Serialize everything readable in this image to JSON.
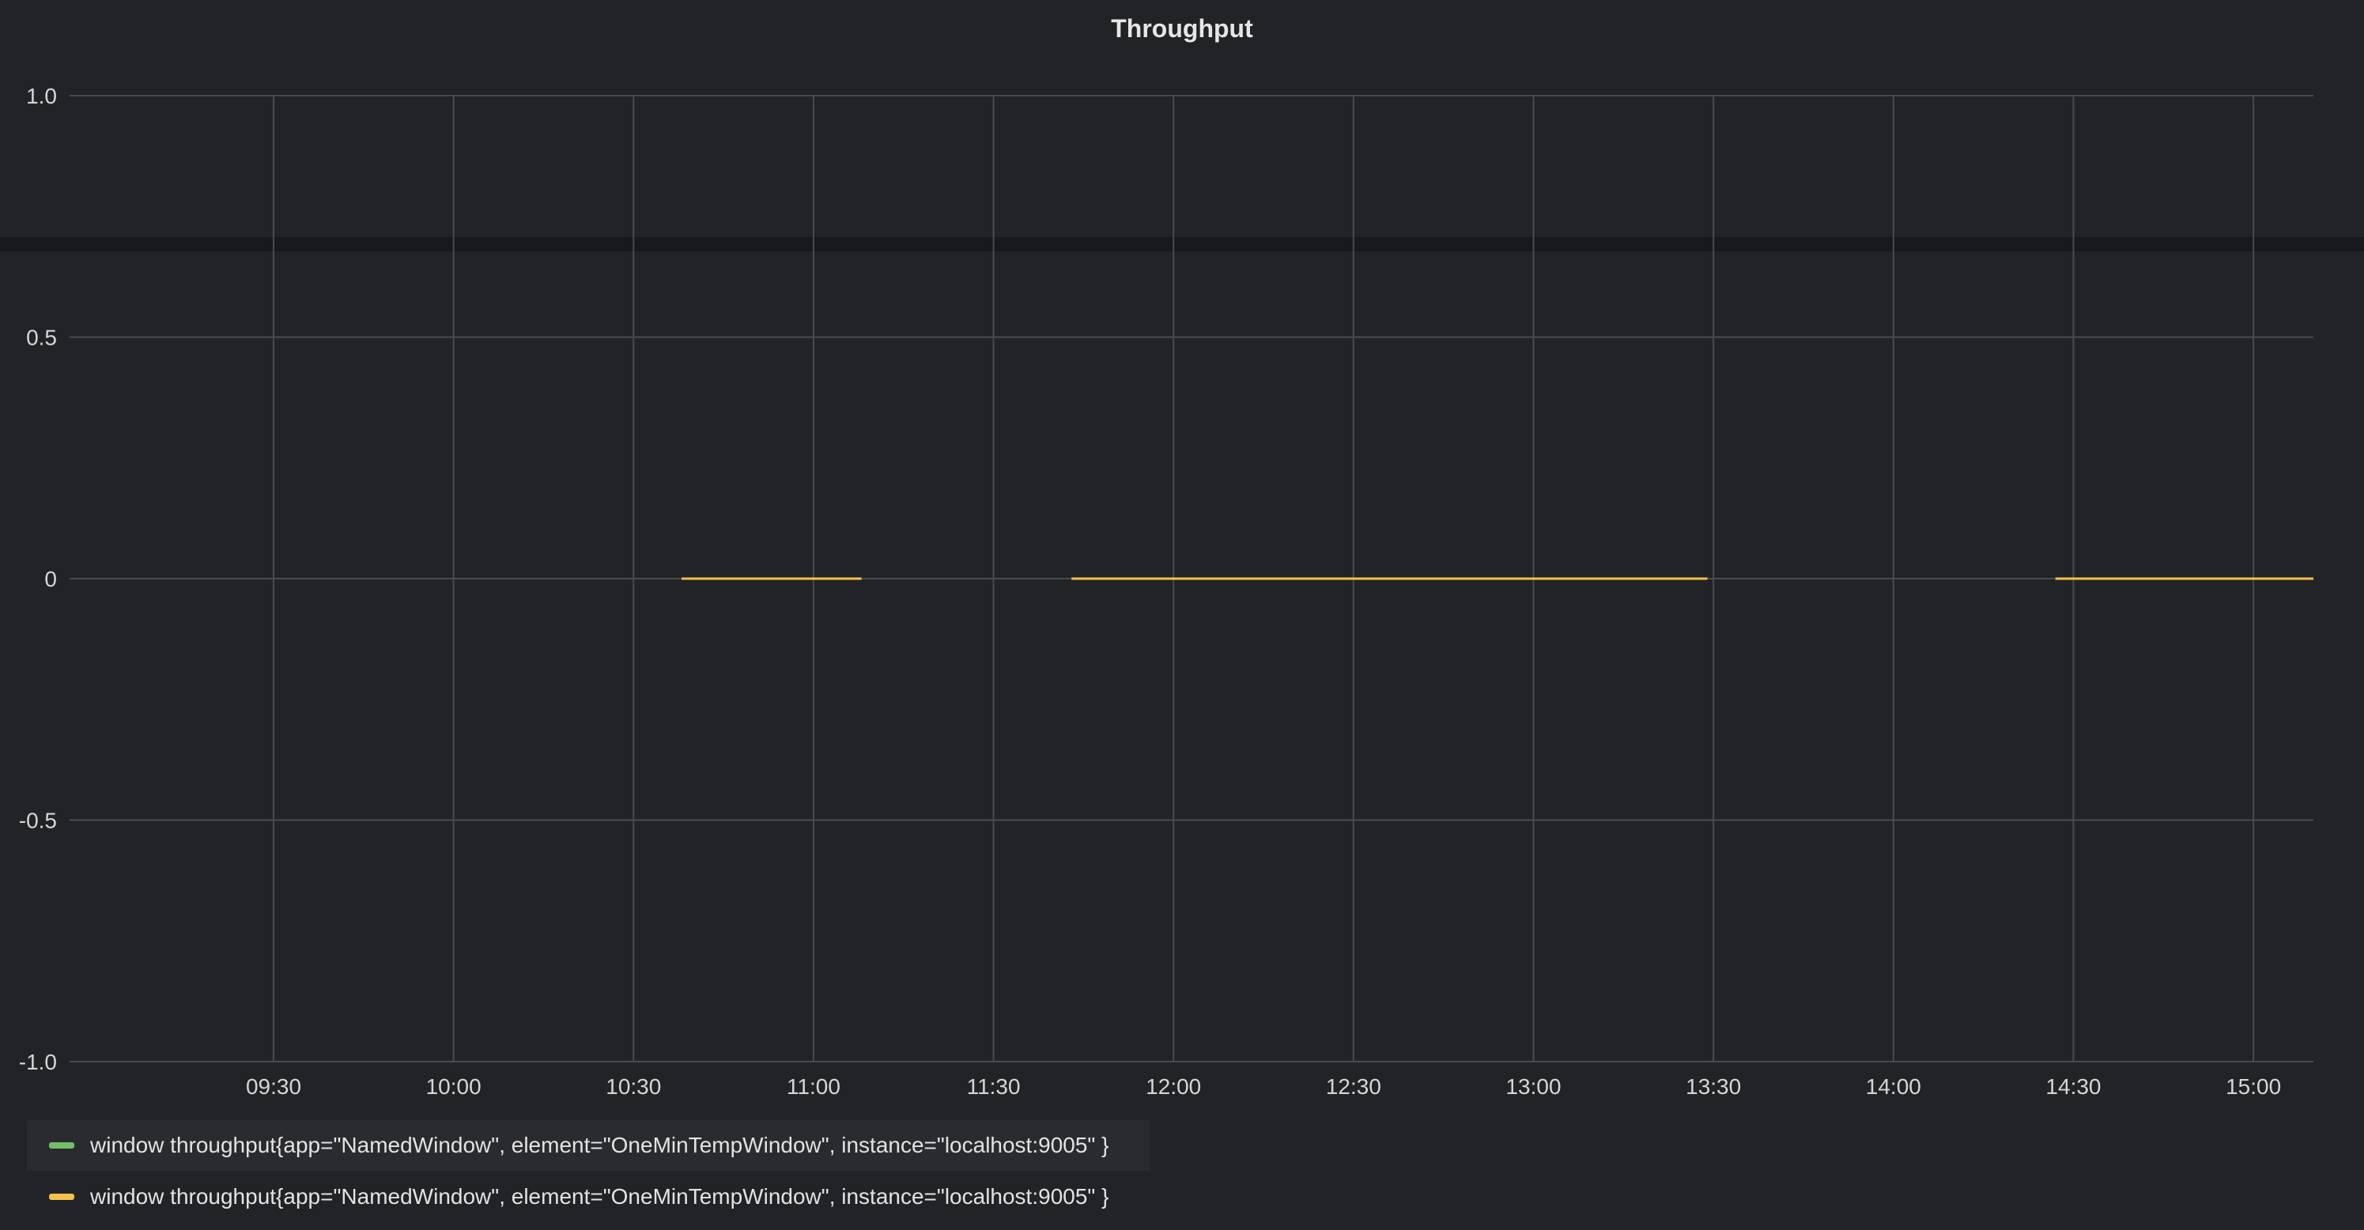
{
  "chart_data": {
    "type": "line",
    "title": "Throughput",
    "xlabel": "",
    "ylabel": "",
    "x_ticks": [
      "09:30",
      "10:00",
      "10:30",
      "11:00",
      "11:30",
      "12:00",
      "12:30",
      "13:00",
      "13:30",
      "14:00",
      "14:30",
      "15:00"
    ],
    "y_ticks": [
      "1.0",
      "0.5",
      "0",
      "-0.5",
      "-1.0"
    ],
    "ylim": [
      -1.0,
      1.0
    ],
    "xlim": [
      "09:04",
      "15:10"
    ],
    "grid": true,
    "legend_position": "bottom",
    "series": [
      {
        "name": "window throughput{app=\"NamedWindow\", element=\"OneMinTempWindow\", instance=\"localhost:9005\" }",
        "color": "#73bf69",
        "segments": []
      },
      {
        "name": "window throughput{app=\"NamedWindow\", element=\"OneMinTempWindow\", instance=\"localhost:9005\" }",
        "color": "#f2c14e",
        "segments": [
          {
            "x": [
              "10:38",
              "11:08"
            ],
            "y": [
              0,
              0
            ]
          },
          {
            "x": [
              "11:43",
              "13:29"
            ],
            "y": [
              0,
              0
            ]
          },
          {
            "x": [
              "14:27",
              "15:10"
            ],
            "y": [
              0,
              0
            ]
          }
        ]
      }
    ]
  },
  "legend": {
    "items": [
      {
        "label": "window throughput{app=\"NamedWindow\", element=\"OneMinTempWindow\", instance=\"localhost:9005\" }",
        "color": "#73bf69"
      },
      {
        "label": "window throughput{app=\"NamedWindow\", element=\"OneMinTempWindow\", instance=\"localhost:9005\" }",
        "color": "#f2c14e"
      }
    ]
  },
  "colors": {
    "panel_background": "#222326",
    "grid": "#4a4b4f",
    "text": "#d6d6d8"
  }
}
